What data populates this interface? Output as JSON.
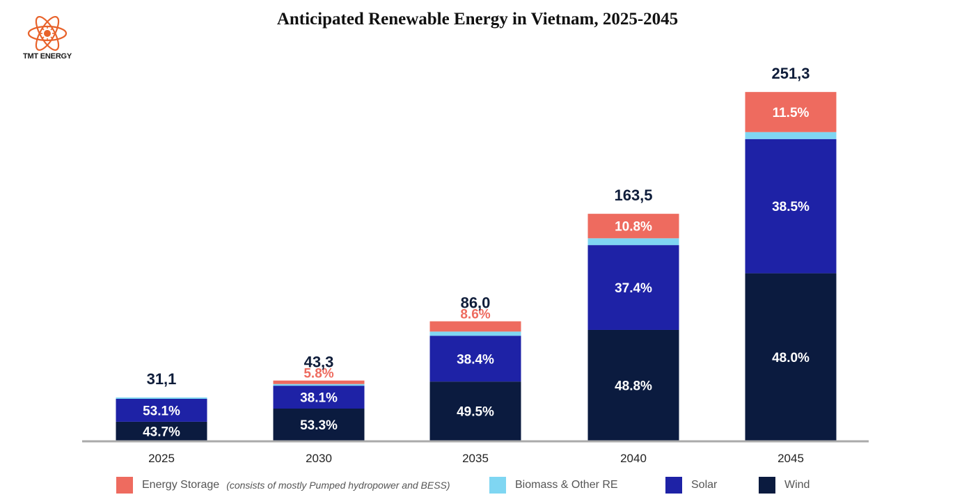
{
  "logo": {
    "text": "TMT ENERGY",
    "icon": "atom-sun-icon",
    "color": "#e8622a"
  },
  "chart_data": {
    "type": "bar",
    "stacked": true,
    "title": "Anticipated Renewable Energy in Vietnam, 2025-2045",
    "categories": [
      "2025",
      "2030",
      "2035",
      "2040",
      "2045"
    ],
    "totals": [
      31.1,
      43.3,
      86.0,
      163.5,
      251.3
    ],
    "total_labels": [
      "31,1",
      "43,3",
      "86,0",
      "163,5",
      "251,3"
    ],
    "series": [
      {
        "key": "wind",
        "name": "Wind",
        "color": "#0b1b3f",
        "label_color": "#ffffff",
        "share_pct": [
          43.7,
          53.3,
          49.5,
          48.8,
          48.0
        ],
        "labels": [
          "43.7%",
          "53.3%",
          "49.5%",
          "48.8%",
          "48.0%"
        ]
      },
      {
        "key": "solar",
        "name": "Solar",
        "color": "#1e22a6",
        "label_color": "#ffffff",
        "share_pct": [
          53.1,
          38.1,
          38.4,
          37.4,
          38.5
        ],
        "labels": [
          "53.1%",
          "38.1%",
          "38.4%",
          "37.4%",
          "38.5%"
        ]
      },
      {
        "key": "biomass",
        "name": "Biomass & Other RE",
        "color": "#7fd6f2",
        "label_color": "#ffffff",
        "share_pct": [
          3.2,
          2.8,
          3.5,
          3.0,
          2.0
        ],
        "labels": [
          "",
          "",
          "",
          "",
          ""
        ]
      },
      {
        "key": "storage",
        "name": "Energy Storage",
        "note": "(consists of mostly Pumped hydropower and BESS)",
        "color": "#ee6b5f",
        "label_color": "#ffffff",
        "share_pct": [
          0.0,
          5.8,
          8.6,
          10.8,
          11.5
        ],
        "labels": [
          "",
          "5.8%",
          "8.6%",
          "10.8%",
          "11.5%"
        ]
      }
    ],
    "ylim": [
      0,
      270
    ],
    "grid": false,
    "legend_position": "bottom",
    "colors": {
      "axis": "#aaaaaa",
      "total_label": "#0f1d3a",
      "outside_label": "#ee6b5f"
    }
  }
}
